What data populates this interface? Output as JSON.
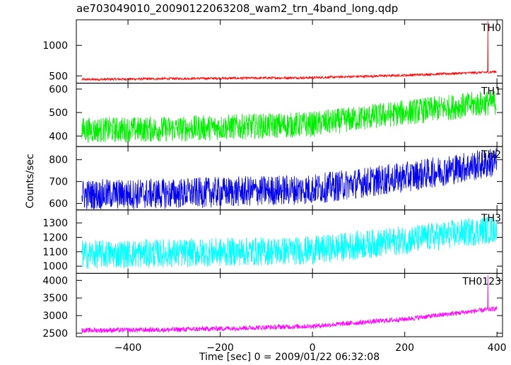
{
  "chart_data": {
    "type": "line",
    "title": "ae703049010_20090122063208_wam2_trn_4band_long.qdp",
    "xlabel": "Time [sec] 0 = 2009/01/22 06:32:08",
    "ylabel": "Counts/sec",
    "xlim": [
      -512,
      412
    ],
    "x_ticks": [
      -400,
      -200,
      0,
      200,
      400
    ],
    "x_tick_labels": [
      "−400",
      "−200",
      "0",
      "200",
      "400"
    ],
    "grid": false,
    "panels": [
      {
        "name": "TH0",
        "color": "#ff0000",
        "ylim": [
          380,
          1420
        ],
        "y_ticks": [
          500,
          1000
        ],
        "y_tick_labels": [
          "500",
          "1000"
        ],
        "baseline": [
          [
            -500,
            440
          ],
          [
            -300,
            455
          ],
          [
            0,
            470
          ],
          [
            200,
            510
          ],
          [
            380,
            560
          ],
          [
            400,
            570
          ]
        ],
        "noise": 20,
        "spike": {
          "x": 380,
          "y": 1400
        }
      },
      {
        "name": "TH1",
        "color": "#00ee00",
        "ylim": [
          355,
          625
        ],
        "y_ticks": [
          400,
          500,
          600
        ],
        "y_tick_labels": [
          "400",
          "500",
          "600"
        ],
        "baseline": [
          [
            -500,
            425
          ],
          [
            -300,
            430
          ],
          [
            0,
            450
          ],
          [
            200,
            500
          ],
          [
            400,
            545
          ]
        ],
        "noise": 55
      },
      {
        "name": "TH2",
        "color": "#0000ee",
        "ylim": [
          570,
          860
        ],
        "y_ticks": [
          600,
          700,
          800
        ],
        "y_tick_labels": [
          "600",
          "700",
          "800"
        ],
        "baseline": [
          [
            -500,
            640
          ],
          [
            -300,
            645
          ],
          [
            0,
            665
          ],
          [
            200,
            720
          ],
          [
            400,
            790
          ]
        ],
        "noise": 70
      },
      {
        "name": "TH3",
        "color": "#00ffff",
        "ylim": [
          950,
          1390
        ],
        "y_ticks": [
          1000,
          1100,
          1200,
          1300
        ],
        "y_tick_labels": [
          "1000",
          "1100",
          "1200",
          "1300"
        ],
        "baseline": [
          [
            -500,
            1080
          ],
          [
            -300,
            1090
          ],
          [
            0,
            1110
          ],
          [
            200,
            1180
          ],
          [
            400,
            1260
          ]
        ],
        "noise": 100
      },
      {
        "name": "TH0123",
        "color": "#ff00ff",
        "ylim": [
          2400,
          4200
        ],
        "y_ticks": [
          2500,
          3000,
          3500,
          4000
        ],
        "y_tick_labels": [
          "2500",
          "3000",
          "3500",
          "4000"
        ],
        "baseline": [
          [
            -500,
            2580
          ],
          [
            -300,
            2600
          ],
          [
            0,
            2700
          ],
          [
            200,
            2900
          ],
          [
            400,
            3200
          ]
        ],
        "noise": 70,
        "spike": {
          "x": 380,
          "y": 4150
        }
      }
    ]
  }
}
